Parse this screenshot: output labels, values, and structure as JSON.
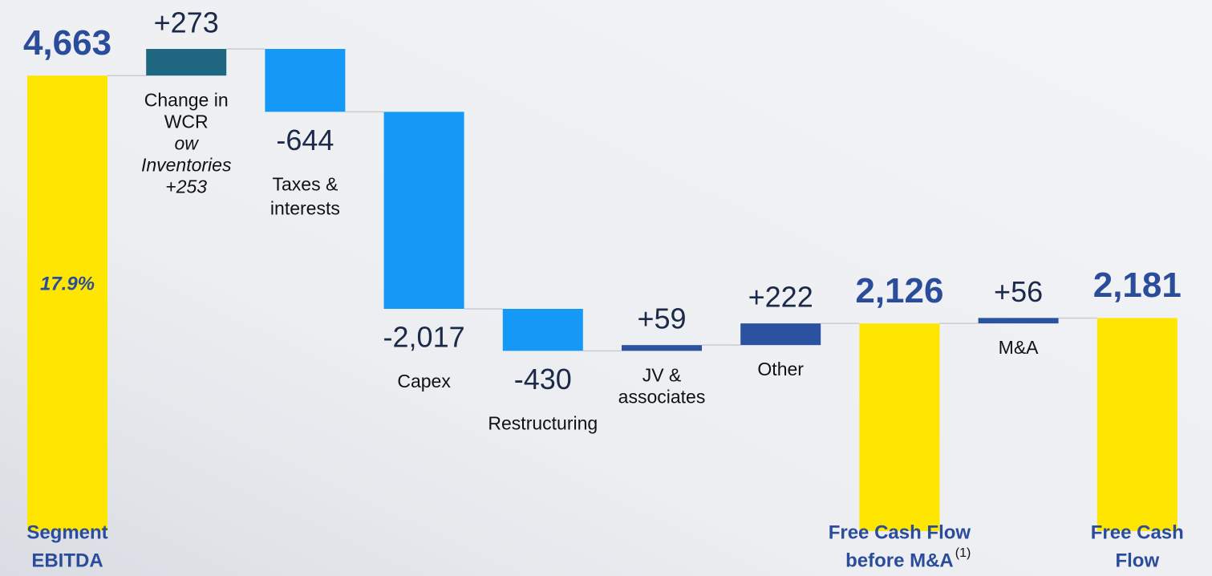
{
  "chart_data": {
    "type": "waterfall",
    "categories": [
      [
        "Segment",
        "EBITDA"
      ],
      [
        "Change in",
        "WCR"
      ],
      [
        "Taxes &",
        "interests"
      ],
      [
        "Capex"
      ],
      [
        "Restructuring"
      ],
      [
        "JV &",
        "associates"
      ],
      [
        "Other"
      ],
      [
        "Free Cash Flow",
        "before M&A"
      ],
      [
        "M&A"
      ],
      [
        "Free Cash",
        "Flow"
      ]
    ],
    "kinds": [
      "total",
      "delta",
      "delta",
      "delta",
      "delta",
      "delta",
      "delta",
      "total",
      "delta",
      "total"
    ],
    "values": [
      4663,
      273,
      -644,
      -2017,
      -430,
      59,
      222,
      2126,
      56,
      2181
    ],
    "value_labels": [
      "4,663",
      "+273",
      "-644",
      "-2,017",
      "-430",
      "+59",
      "+222",
      "2,126",
      "+56",
      "2,181"
    ],
    "colors": [
      "#ffe600",
      "#1f6680",
      "#1499f7",
      "#1499f7",
      "#1499f7",
      "#2b52a0",
      "#2b52a0",
      "#ffe600",
      "#2b52a0",
      "#ffe600"
    ],
    "footnote_mark": "(1)",
    "margin_label": "17.9%",
    "wcr_note": [
      "ow",
      "Inventories",
      "+253"
    ]
  }
}
